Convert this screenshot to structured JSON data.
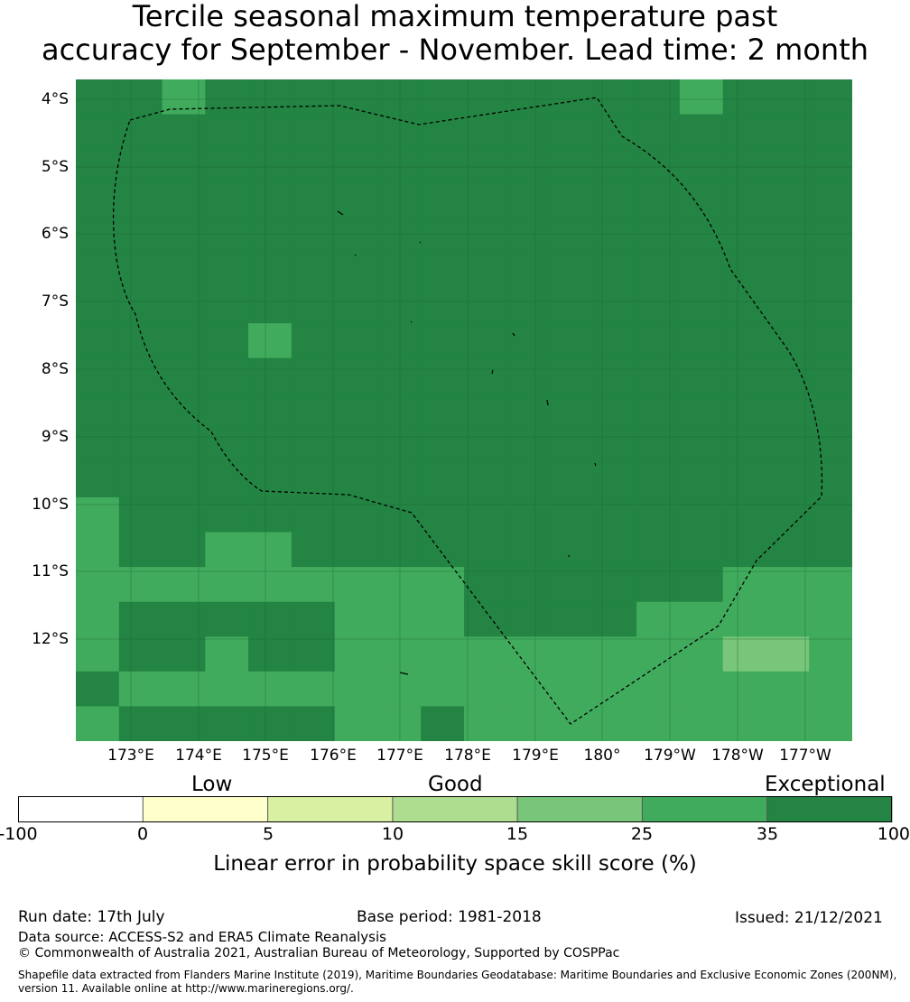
{
  "title": {
    "line1": "Tercile seasonal maximum temperature past",
    "line2": "accuracy for September - November. Lead time: 2 month"
  },
  "map": {
    "lat_labels": [
      "4°S",
      "5°S",
      "6°S",
      "7°S",
      "8°S",
      "9°S",
      "10°S",
      "11°S",
      "12°S"
    ],
    "lon_labels": [
      "173°E",
      "174°E",
      "175°E",
      "176°E",
      "177°E",
      "178°E",
      "179°E",
      "180°",
      "179°W",
      "178°W",
      "177°W"
    ],
    "grid_rows": [
      "666662222226666666666666666666666666666666666666666666666666666666666666666666",
      "66666222222666666666666666666666666666666666666666666666666666666666666666666",
      "6666666666666666666666666666666666666666666666666666666666666666666666666666666666",
      "6666666666666666666666666666666666666666666666666666666666666666666666666666666666",
      "6666666666666666666666666666666666666666666666666666666666666666666666666666666666",
      "6666666666666666666666666666666666666666666666666666666666666666666666666666666666",
      "6666666666666666666666666666666666666666666666666666666666666666666666666666666666",
      "6666666666666666666666666666666666666666666666666666666666666666666666666666666666"
    ],
    "cells": [
      "665666666666665666",
      "666666666666666666",
      "666666666666666666",
      "666666666666666666",
      "666666666666666666",
      "666666666666666666",
      "666666666666666666",
      "666656666666666666",
      "666666666666666666",
      "666666666666666666",
      "666666666666666666",
      "666666666666666666",
      "566666666666666666",
      "566556666666666666",
      "555555555666666555",
      "566666555666655555",
      "566566555555555445",
      "655555555555555555",
      "566666556555555555"
    ],
    "category_colors": {
      "low0": "#ffffcc",
      "low5": "#d9f0a3",
      "good10": "#addd8e",
      "good15": "#78c679",
      "good25": "#41ab5d",
      "exc35": "#238443",
      "neg": "#ffffff"
    }
  },
  "colorbar": {
    "category_labels": [
      "Low",
      "Good",
      "Exceptional"
    ],
    "ticks": [
      "-100",
      "0",
      "5",
      "10",
      "15",
      "25",
      "35",
      "100"
    ],
    "colors": [
      "#ffffff",
      "#ffffcc",
      "#d9f0a3",
      "#addd8e",
      "#78c679",
      "#41ab5d",
      "#238443"
    ],
    "label": "Linear error in probability space skill score (%)"
  },
  "footer": {
    "run_date": "Run date: 17th July",
    "base_period": "Base period: 1981-2018",
    "issued": "Issued: 21/12/2021",
    "data_source": "Data source: ACCESS-S2 and ERA5 Climate Reanalysis",
    "copyright": "© Commonwealth of Australia 2021, Australian Bureau of Meteorology, Supported by COSPPac",
    "shapefile_line1": "Shapefile data extracted from Flanders Marine Institute (2019), Maritime Boundaries Geodatabase: Maritime Boundaries and Exclusive Economic Zones (200NM),",
    "shapefile_line2": "version 11. Available online at http://www.marineregions.org/."
  }
}
